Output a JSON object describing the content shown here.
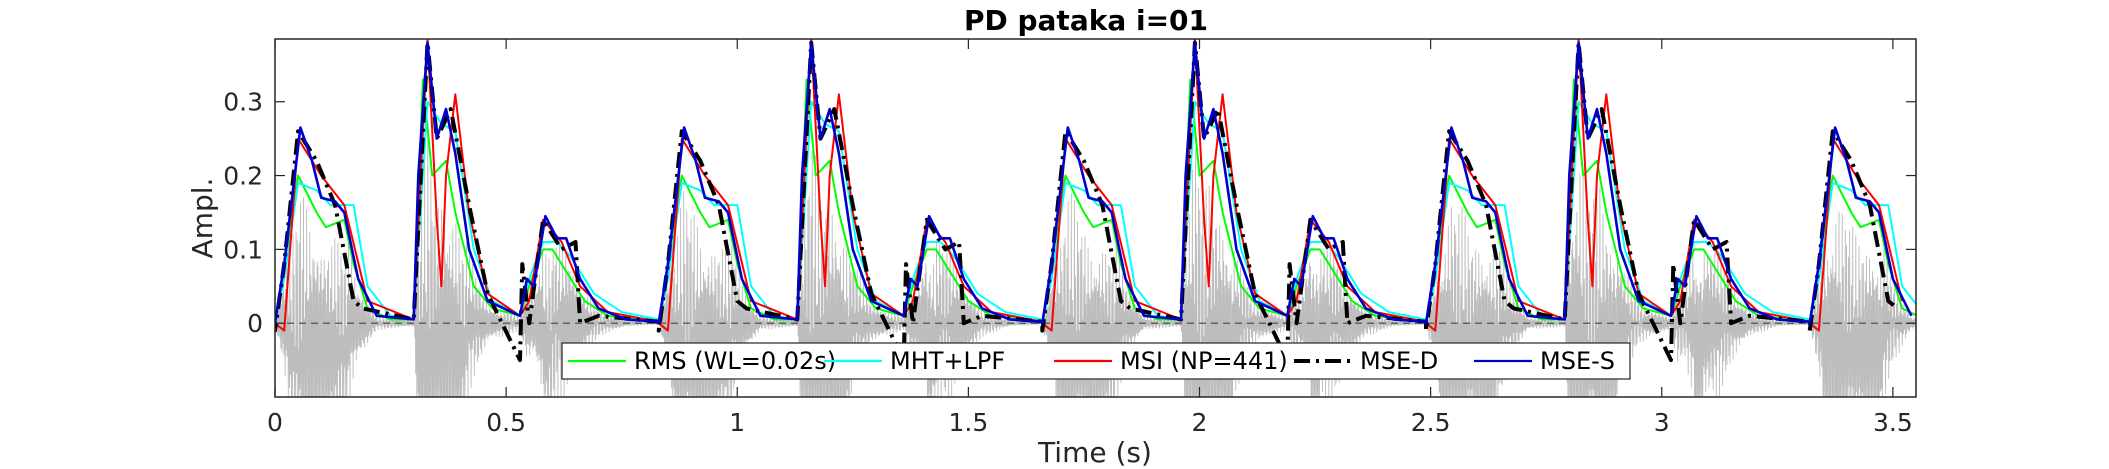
{
  "chart_data": {
    "type": "line",
    "title": "PD pataka i=01",
    "xlabel": "Time (s)",
    "ylabel": "Ampl.",
    "xlim": [
      0,
      3.55
    ],
    "ylim": [
      -0.1,
      0.385
    ],
    "xticks": [
      0,
      0.5,
      1,
      1.5,
      2,
      2.5,
      3,
      3.5
    ],
    "xtick_labels": [
      "0",
      "0.5",
      "1",
      "1.5",
      "2",
      "2.5",
      "3",
      "3.5"
    ],
    "yticks": [
      0,
      0.1,
      0.2,
      0.3
    ],
    "ytick_labels": [
      "0",
      "0.1",
      "0.2",
      "0.3"
    ],
    "zero_line": true,
    "background_signal": {
      "name": "waveform",
      "color": "#bdbdbd",
      "present": true
    },
    "legend_position": "bottom-center",
    "syllable_period_s": 0.83,
    "series": [
      {
        "name": "RMS (WL=0.02s)",
        "color": "#00ff00",
        "style": "solid",
        "x": [
          0,
          0.02,
          0.05,
          0.09,
          0.11,
          0.15,
          0.17,
          0.2,
          0.25,
          0.3,
          0.32,
          0.34,
          0.37,
          0.39,
          0.43,
          0.47,
          0.53,
          0.55,
          0.58,
          0.6,
          0.63,
          0.67,
          0.72,
          0.79,
          0.83
        ],
        "y": [
          0,
          0.08,
          0.2,
          0.15,
          0.13,
          0.14,
          0.08,
          0.02,
          0.005,
          0.005,
          0.33,
          0.2,
          0.22,
          0.15,
          0.05,
          0.02,
          0.01,
          0.05,
          0.1,
          0.1,
          0.07,
          0.03,
          0.01,
          0.005,
          0.003
        ]
      },
      {
        "name": "MHT+LPF",
        "color": "#00ffff",
        "style": "solid",
        "x": [
          0,
          0.02,
          0.05,
          0.09,
          0.12,
          0.17,
          0.2,
          0.25,
          0.3,
          0.33,
          0.36,
          0.39,
          0.43,
          0.47,
          0.53,
          0.55,
          0.58,
          0.61,
          0.64,
          0.69,
          0.75,
          0.83
        ],
        "y": [
          0,
          0.06,
          0.19,
          0.18,
          0.16,
          0.16,
          0.05,
          0.01,
          0.005,
          0.3,
          0.27,
          0.26,
          0.1,
          0.03,
          0.01,
          0.06,
          0.11,
          0.11,
          0.09,
          0.04,
          0.015,
          0.005
        ]
      },
      {
        "name": "MSI (NP=441)",
        "color": "#ff0000",
        "style": "solid",
        "x": [
          0,
          0.02,
          0.05,
          0.1,
          0.15,
          0.2,
          0.3,
          0.33,
          0.35,
          0.36,
          0.37,
          0.39,
          0.42,
          0.46,
          0.53,
          0.55,
          0.58,
          0.62,
          0.66,
          0.72,
          0.83
        ],
        "y": [
          0,
          -0.01,
          0.25,
          0.2,
          0.16,
          0.03,
          0.005,
          0.385,
          0.14,
          0.05,
          0.2,
          0.31,
          0.15,
          0.04,
          0.01,
          0.03,
          0.14,
          0.11,
          0.05,
          0.015,
          0.002
        ]
      },
      {
        "name": "MSE-D",
        "color": "#000000",
        "style": "dashdot",
        "x": [
          0,
          0.02,
          0.05,
          0.09,
          0.13,
          0.17,
          0.19,
          0.3,
          0.33,
          0.35,
          0.38,
          0.42,
          0.46,
          0.53,
          0.535,
          0.55,
          0.58,
          0.62,
          0.65,
          0.66,
          0.7,
          0.83
        ],
        "y": [
          -0.01,
          0.08,
          0.26,
          0.22,
          0.16,
          0.03,
          0.02,
          0.005,
          0.38,
          0.25,
          0.29,
          0.16,
          0.04,
          -0.05,
          0.08,
          0.0,
          0.14,
          0.1,
          0.11,
          0.0,
          0.01,
          0.002
        ]
      },
      {
        "name": "MSE-S",
        "color": "#0000cd",
        "style": "solid",
        "x": [
          0,
          0.02,
          0.055,
          0.08,
          0.1,
          0.13,
          0.15,
          0.18,
          0.22,
          0.3,
          0.31,
          0.33,
          0.35,
          0.37,
          0.39,
          0.42,
          0.46,
          0.53,
          0.545,
          0.56,
          0.585,
          0.61,
          0.63,
          0.66,
          0.7,
          0.76,
          0.83
        ],
        "y": [
          0,
          0.08,
          0.265,
          0.22,
          0.17,
          0.165,
          0.15,
          0.06,
          0.01,
          0.005,
          0.2,
          0.38,
          0.25,
          0.29,
          0.23,
          0.1,
          0.03,
          0.01,
          0.06,
          0.05,
          0.145,
          0.115,
          0.115,
          0.06,
          0.02,
          0.005,
          0.002
        ]
      }
    ]
  }
}
